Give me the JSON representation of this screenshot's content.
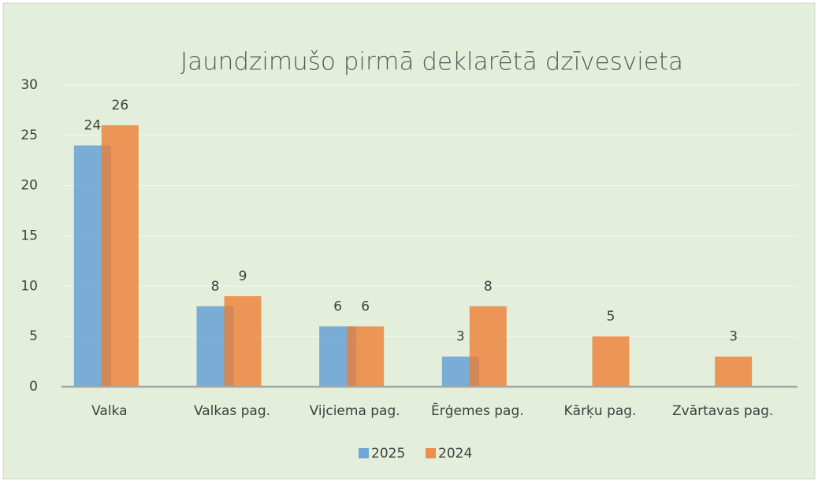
{
  "chart_data": {
    "type": "bar",
    "title": "Jaundzimušo pirmā deklarētā dzīvesvieta",
    "categories": [
      "Valka",
      "Valkas pag.",
      "Vijciema pag.",
      "Ērģemes pag.",
      "Kārķu pag.",
      "Zvārtavas pag."
    ],
    "series": [
      {
        "name": "2025",
        "color": "#5b9bd5",
        "values": [
          24,
          8,
          6,
          3,
          null,
          null
        ]
      },
      {
        "name": "2024",
        "color": "#ed7d31",
        "values": [
          26,
          9,
          6,
          8,
          5,
          3
        ]
      }
    ],
    "ylim": [
      0,
      30
    ],
    "yticks": [
      0,
      5,
      10,
      15,
      20,
      25,
      30
    ],
    "grid": true,
    "legend": "bottom"
  }
}
